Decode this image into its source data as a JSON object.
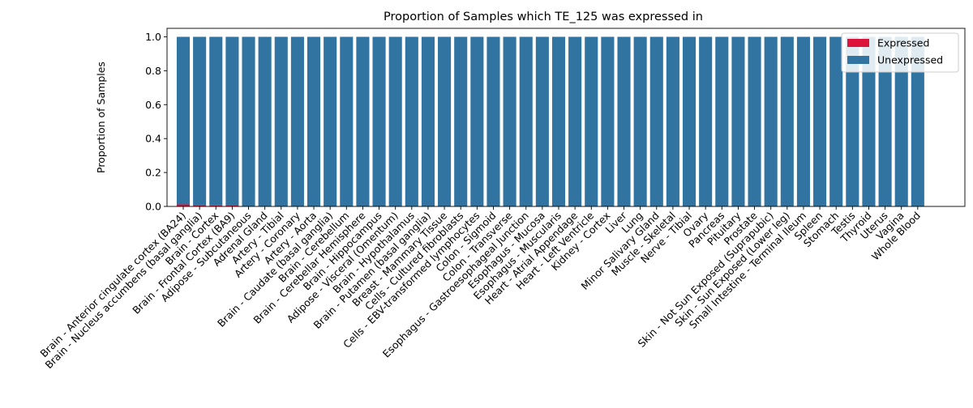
{
  "chart_data": {
    "type": "bar",
    "stacked": true,
    "title": "Proportion of Samples which TE_125 was expressed in",
    "xlabel": "",
    "ylabel": "Proportion of Samples",
    "ylim": [
      0,
      1.05
    ],
    "yticks": [
      "0.0",
      "0.2",
      "0.4",
      "0.6",
      "0.8",
      "1.0"
    ],
    "legend_position": "upper-right",
    "categories": [
      "Brain - Anterior cingulate cortex (BA24)",
      "Brain - Nucleus accumbens (basal ganglia)",
      "Brain - Cortex",
      "Brain - Frontal Cortex (BA9)",
      "Adipose - Subcutaneous",
      "Adrenal Gland",
      "Artery - Tibial",
      "Artery - Coronary",
      "Artery - Aorta",
      "Brain - Caudate (basal ganglia)",
      "Brain - Cerebellum",
      "Brain - Cerebellar Hemisphere",
      "Brain - Hippocampus",
      "Adipose - Visceral (Omentum)",
      "Brain - Hypothalamus",
      "Brain - Putamen (basal ganglia)",
      "Breast - Mammary Tissue",
      "Cells - Cultured fibroblasts",
      "Cells - EBV-transformed lymphocytes",
      "Colon - Sigmoid",
      "Colon - Transverse",
      "Esophagus - Gastroesophageal Junction",
      "Esophagus - Mucosa",
      "Esophagus - Muscularis",
      "Heart - Atrial Appendage",
      "Heart - Left Ventricle",
      "Kidney - Cortex",
      "Liver",
      "Lung",
      "Minor Salivary Gland",
      "Muscle - Skeletal",
      "Nerve - Tibial",
      "Ovary",
      "Pancreas",
      "Pituitary",
      "Prostate",
      "Skin - Not Sun Exposed (Suprapubic)",
      "Skin - Sun Exposed (Lower leg)",
      "Small Intestine - Terminal Ileum",
      "Spleen",
      "Stomach",
      "Testis",
      "Thyroid",
      "Uterus",
      "Vagina",
      "Whole Blood"
    ],
    "series": [
      {
        "name": "Expressed",
        "color": "#dc143c",
        "values": [
          0.012,
          0.008,
          0.006,
          0.005,
          0,
          0,
          0,
          0,
          0,
          0,
          0,
          0,
          0,
          0,
          0,
          0,
          0,
          0,
          0,
          0,
          0,
          0,
          0,
          0,
          0,
          0,
          0,
          0,
          0,
          0,
          0,
          0,
          0,
          0,
          0,
          0,
          0,
          0,
          0,
          0,
          0,
          0,
          0,
          0,
          0,
          0
        ]
      },
      {
        "name": "Unexpressed",
        "color": "#3274a1",
        "values": [
          0.988,
          0.992,
          0.994,
          0.995,
          1,
          1,
          1,
          1,
          1,
          1,
          1,
          1,
          1,
          1,
          1,
          1,
          1,
          1,
          1,
          1,
          1,
          1,
          1,
          1,
          1,
          1,
          1,
          1,
          1,
          1,
          1,
          1,
          1,
          1,
          1,
          1,
          1,
          1,
          1,
          1,
          1,
          1,
          1,
          1,
          1,
          1
        ]
      }
    ]
  }
}
